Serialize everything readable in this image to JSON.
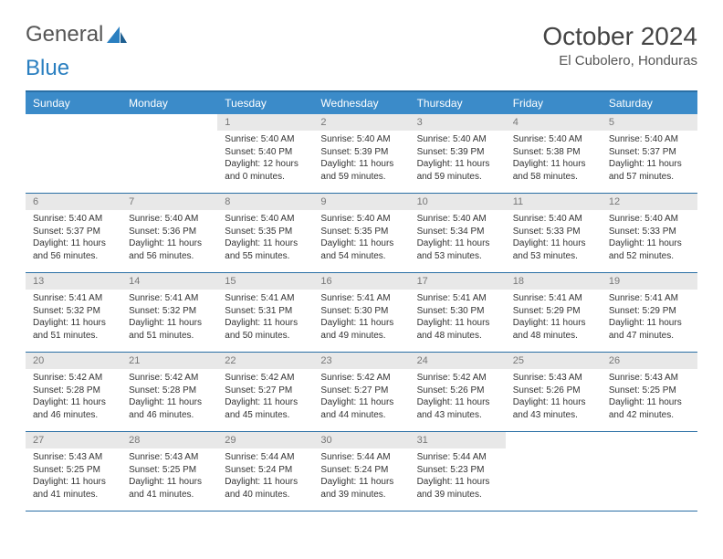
{
  "logo": {
    "text1": "General",
    "text2": "Blue"
  },
  "title": "October 2024",
  "location": "El Cubolero, Honduras",
  "colors": {
    "header_bg": "#3b8bc9",
    "header_border": "#2a6fa5",
    "daynum_bg": "#e8e8e8",
    "logo_blue": "#2a7fc0"
  },
  "weekdays": [
    "Sunday",
    "Monday",
    "Tuesday",
    "Wednesday",
    "Thursday",
    "Friday",
    "Saturday"
  ],
  "weeks": [
    [
      {
        "n": "",
        "sr": "",
        "ss": "",
        "dl": ""
      },
      {
        "n": "",
        "sr": "",
        "ss": "",
        "dl": ""
      },
      {
        "n": "1",
        "sr": "Sunrise: 5:40 AM",
        "ss": "Sunset: 5:40 PM",
        "dl": "Daylight: 12 hours and 0 minutes."
      },
      {
        "n": "2",
        "sr": "Sunrise: 5:40 AM",
        "ss": "Sunset: 5:39 PM",
        "dl": "Daylight: 11 hours and 59 minutes."
      },
      {
        "n": "3",
        "sr": "Sunrise: 5:40 AM",
        "ss": "Sunset: 5:39 PM",
        "dl": "Daylight: 11 hours and 59 minutes."
      },
      {
        "n": "4",
        "sr": "Sunrise: 5:40 AM",
        "ss": "Sunset: 5:38 PM",
        "dl": "Daylight: 11 hours and 58 minutes."
      },
      {
        "n": "5",
        "sr": "Sunrise: 5:40 AM",
        "ss": "Sunset: 5:37 PM",
        "dl": "Daylight: 11 hours and 57 minutes."
      }
    ],
    [
      {
        "n": "6",
        "sr": "Sunrise: 5:40 AM",
        "ss": "Sunset: 5:37 PM",
        "dl": "Daylight: 11 hours and 56 minutes."
      },
      {
        "n": "7",
        "sr": "Sunrise: 5:40 AM",
        "ss": "Sunset: 5:36 PM",
        "dl": "Daylight: 11 hours and 56 minutes."
      },
      {
        "n": "8",
        "sr": "Sunrise: 5:40 AM",
        "ss": "Sunset: 5:35 PM",
        "dl": "Daylight: 11 hours and 55 minutes."
      },
      {
        "n": "9",
        "sr": "Sunrise: 5:40 AM",
        "ss": "Sunset: 5:35 PM",
        "dl": "Daylight: 11 hours and 54 minutes."
      },
      {
        "n": "10",
        "sr": "Sunrise: 5:40 AM",
        "ss": "Sunset: 5:34 PM",
        "dl": "Daylight: 11 hours and 53 minutes."
      },
      {
        "n": "11",
        "sr": "Sunrise: 5:40 AM",
        "ss": "Sunset: 5:33 PM",
        "dl": "Daylight: 11 hours and 53 minutes."
      },
      {
        "n": "12",
        "sr": "Sunrise: 5:40 AM",
        "ss": "Sunset: 5:33 PM",
        "dl": "Daylight: 11 hours and 52 minutes."
      }
    ],
    [
      {
        "n": "13",
        "sr": "Sunrise: 5:41 AM",
        "ss": "Sunset: 5:32 PM",
        "dl": "Daylight: 11 hours and 51 minutes."
      },
      {
        "n": "14",
        "sr": "Sunrise: 5:41 AM",
        "ss": "Sunset: 5:32 PM",
        "dl": "Daylight: 11 hours and 51 minutes."
      },
      {
        "n": "15",
        "sr": "Sunrise: 5:41 AM",
        "ss": "Sunset: 5:31 PM",
        "dl": "Daylight: 11 hours and 50 minutes."
      },
      {
        "n": "16",
        "sr": "Sunrise: 5:41 AM",
        "ss": "Sunset: 5:30 PM",
        "dl": "Daylight: 11 hours and 49 minutes."
      },
      {
        "n": "17",
        "sr": "Sunrise: 5:41 AM",
        "ss": "Sunset: 5:30 PM",
        "dl": "Daylight: 11 hours and 48 minutes."
      },
      {
        "n": "18",
        "sr": "Sunrise: 5:41 AM",
        "ss": "Sunset: 5:29 PM",
        "dl": "Daylight: 11 hours and 48 minutes."
      },
      {
        "n": "19",
        "sr": "Sunrise: 5:41 AM",
        "ss": "Sunset: 5:29 PM",
        "dl": "Daylight: 11 hours and 47 minutes."
      }
    ],
    [
      {
        "n": "20",
        "sr": "Sunrise: 5:42 AM",
        "ss": "Sunset: 5:28 PM",
        "dl": "Daylight: 11 hours and 46 minutes."
      },
      {
        "n": "21",
        "sr": "Sunrise: 5:42 AM",
        "ss": "Sunset: 5:28 PM",
        "dl": "Daylight: 11 hours and 46 minutes."
      },
      {
        "n": "22",
        "sr": "Sunrise: 5:42 AM",
        "ss": "Sunset: 5:27 PM",
        "dl": "Daylight: 11 hours and 45 minutes."
      },
      {
        "n": "23",
        "sr": "Sunrise: 5:42 AM",
        "ss": "Sunset: 5:27 PM",
        "dl": "Daylight: 11 hours and 44 minutes."
      },
      {
        "n": "24",
        "sr": "Sunrise: 5:42 AM",
        "ss": "Sunset: 5:26 PM",
        "dl": "Daylight: 11 hours and 43 minutes."
      },
      {
        "n": "25",
        "sr": "Sunrise: 5:43 AM",
        "ss": "Sunset: 5:26 PM",
        "dl": "Daylight: 11 hours and 43 minutes."
      },
      {
        "n": "26",
        "sr": "Sunrise: 5:43 AM",
        "ss": "Sunset: 5:25 PM",
        "dl": "Daylight: 11 hours and 42 minutes."
      }
    ],
    [
      {
        "n": "27",
        "sr": "Sunrise: 5:43 AM",
        "ss": "Sunset: 5:25 PM",
        "dl": "Daylight: 11 hours and 41 minutes."
      },
      {
        "n": "28",
        "sr": "Sunrise: 5:43 AM",
        "ss": "Sunset: 5:25 PM",
        "dl": "Daylight: 11 hours and 41 minutes."
      },
      {
        "n": "29",
        "sr": "Sunrise: 5:44 AM",
        "ss": "Sunset: 5:24 PM",
        "dl": "Daylight: 11 hours and 40 minutes."
      },
      {
        "n": "30",
        "sr": "Sunrise: 5:44 AM",
        "ss": "Sunset: 5:24 PM",
        "dl": "Daylight: 11 hours and 39 minutes."
      },
      {
        "n": "31",
        "sr": "Sunrise: 5:44 AM",
        "ss": "Sunset: 5:23 PM",
        "dl": "Daylight: 11 hours and 39 minutes."
      },
      {
        "n": "",
        "sr": "",
        "ss": "",
        "dl": ""
      },
      {
        "n": "",
        "sr": "",
        "ss": "",
        "dl": ""
      }
    ]
  ]
}
